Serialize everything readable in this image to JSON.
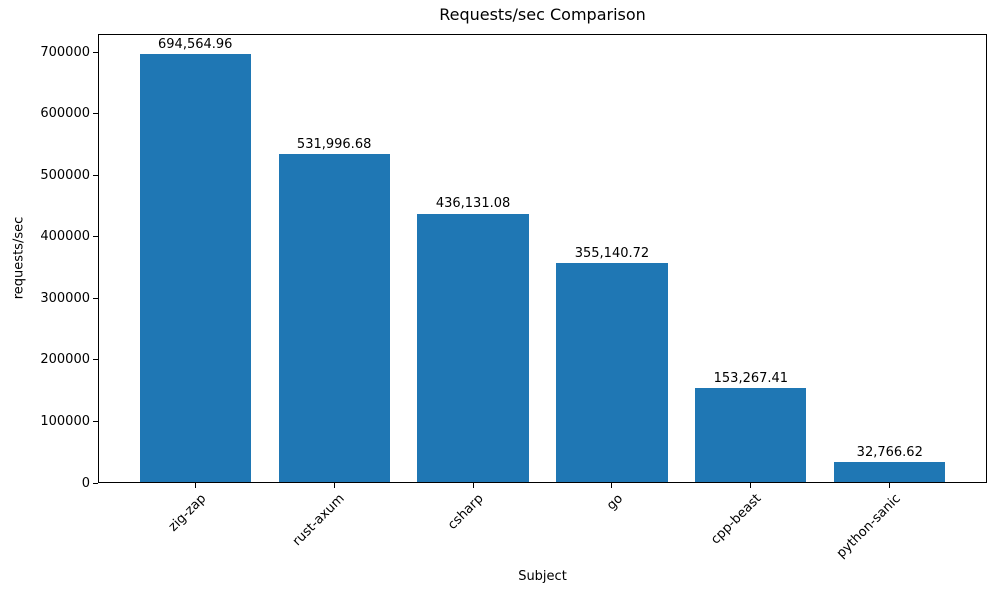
{
  "chart_data": {
    "type": "bar",
    "title": "Requests/sec Comparison",
    "xlabel": "Subject",
    "ylabel": "requests/sec",
    "categories": [
      "zig-zap",
      "rust-axum",
      "csharp",
      "go",
      "cpp-beast",
      "python-sanic"
    ],
    "values": [
      694564.96,
      531996.68,
      436131.08,
      355140.72,
      153267.41,
      32766.62
    ],
    "value_labels": [
      "694,564.96",
      "531,996.68",
      "436,131.08",
      "355,140.72",
      "153,267.41",
      "32,766.62"
    ],
    "y_ticks": [
      0,
      100000,
      200000,
      300000,
      400000,
      500000,
      600000,
      700000
    ],
    "y_tick_labels": [
      "0",
      "100000",
      "200000",
      "300000",
      "400000",
      "500000",
      "600000",
      "700000"
    ],
    "ylim": [
      0,
      729293
    ],
    "xlim": [
      -0.7,
      5.7
    ],
    "bar_width": 0.8,
    "bar_color": "#1f77b4",
    "axis_color": "#000000",
    "background_color": "#ffffff",
    "grid": false,
    "legend": null
  }
}
